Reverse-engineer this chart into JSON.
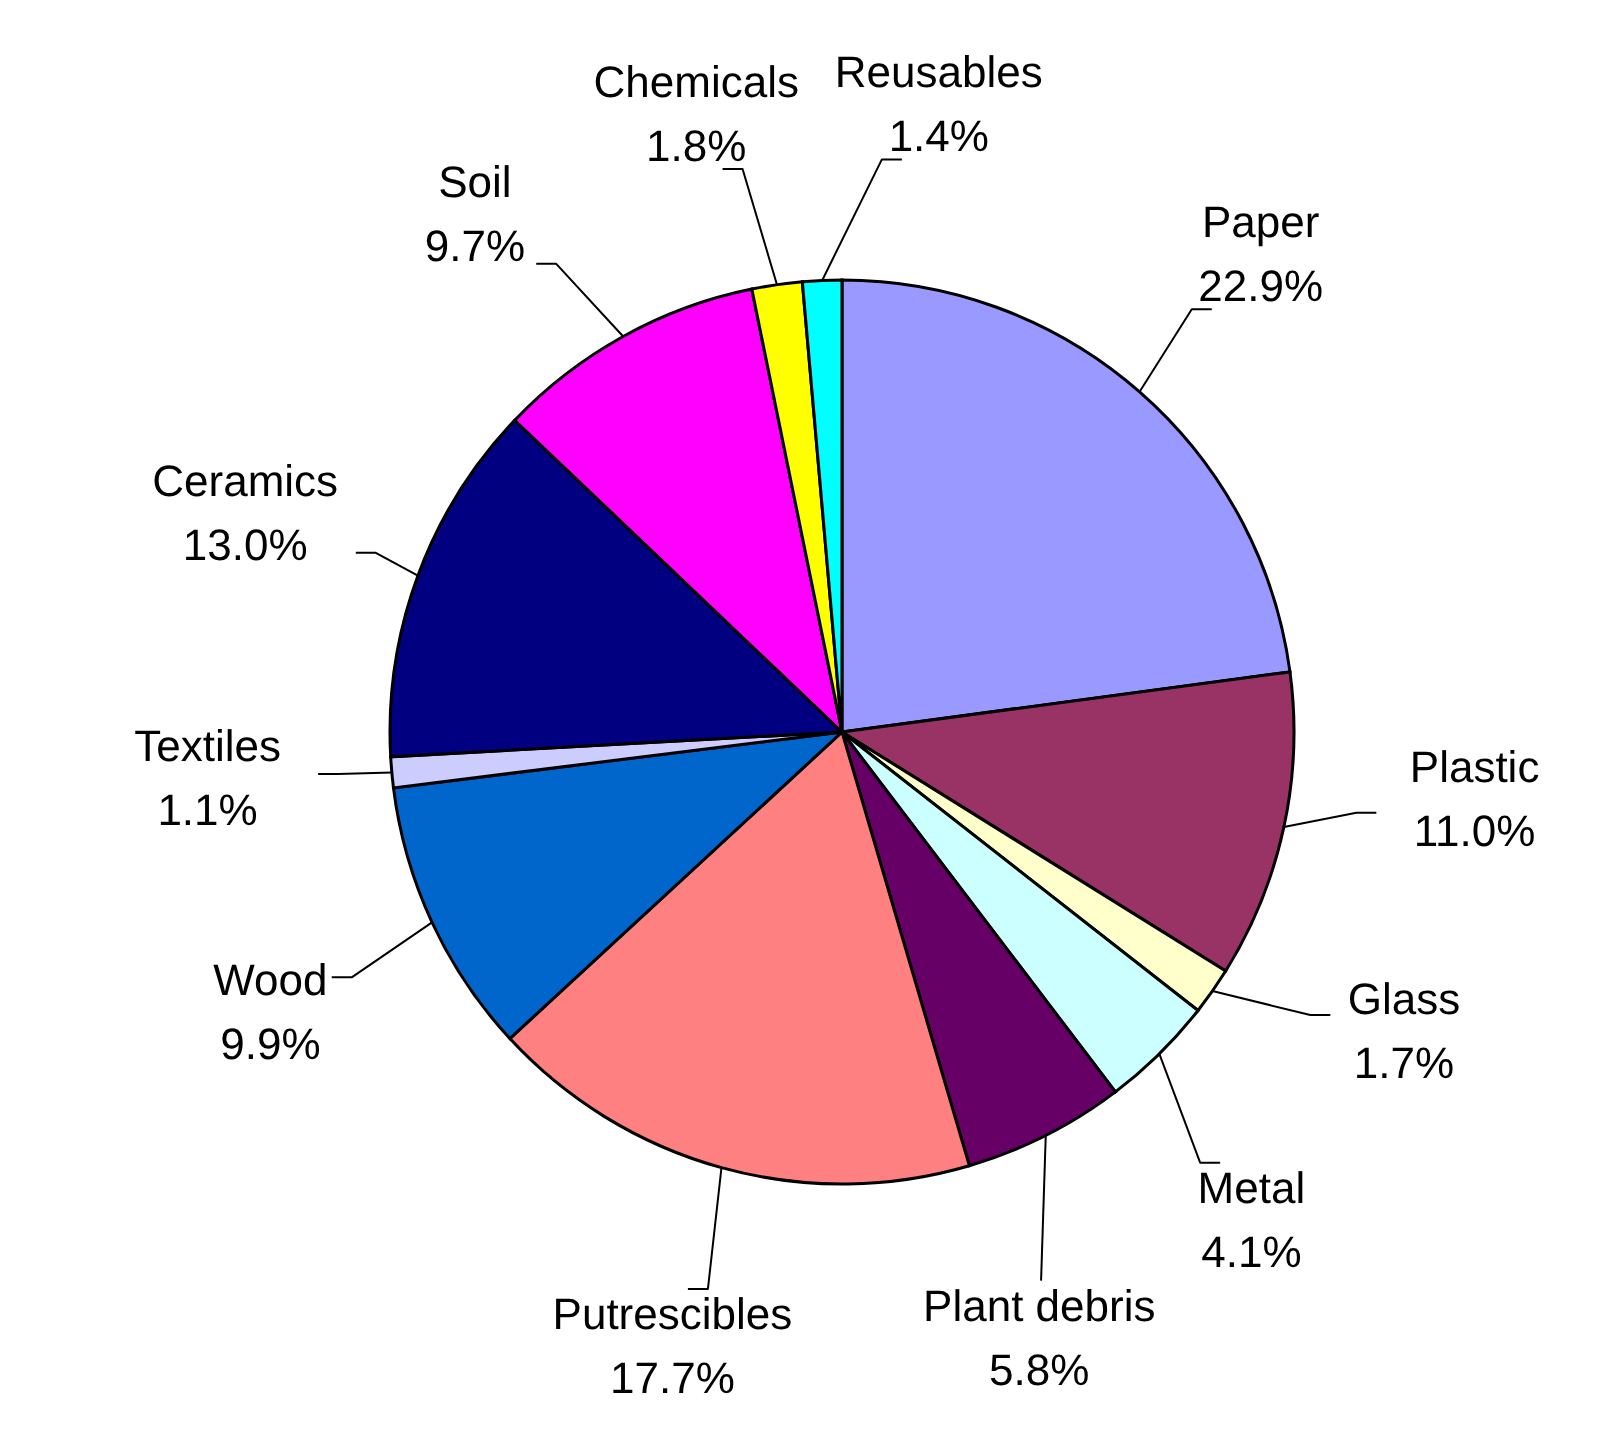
{
  "chart_data": {
    "type": "pie",
    "categories": [
      "Paper",
      "Plastic",
      "Glass",
      "Metal",
      "Plant debris",
      "Putrescibles",
      "Wood",
      "Textiles",
      "Ceramics",
      "Soil",
      "Chemicals",
      "Reusables"
    ],
    "values": [
      22.9,
      11.0,
      1.7,
      4.1,
      5.8,
      17.7,
      9.9,
      1.1,
      13.0,
      9.7,
      1.8,
      1.4
    ],
    "colors": [
      "#9999ff",
      "#993366",
      "#ffffcc",
      "#ccffff",
      "#660066",
      "#ff8080",
      "#0066cc",
      "#ccccff",
      "#000080",
      "#ff00ff",
      "#ffff00",
      "#00ffff"
    ],
    "value_labels": [
      "22.9%",
      "11.0%",
      "1.7%",
      "4.1%",
      "5.8%",
      "17.7%",
      "9.9%",
      "1.1%",
      "13.0%",
      "9.7%",
      "1.8%",
      "1.4%"
    ]
  }
}
